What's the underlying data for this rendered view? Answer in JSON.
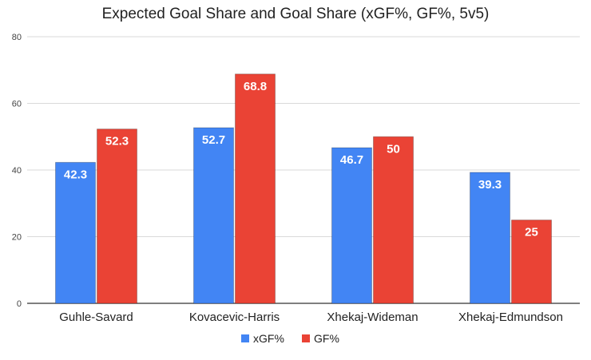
{
  "chart_data": {
    "type": "bar",
    "title": "Expected Goal Share and Goal Share (xGF%, GF%, 5v5)",
    "categories": [
      "Guhle-Savard",
      "Kovacevic-Harris",
      "Xhekaj-Wideman",
      "Xhekaj-Edmundson"
    ],
    "series": [
      {
        "name": "xGF%",
        "values": [
          42.3,
          52.7,
          46.7,
          39.3
        ],
        "color": "#4285f4"
      },
      {
        "name": "GF%",
        "values": [
          52.3,
          68.8,
          50,
          25
        ],
        "color": "#ea4335"
      }
    ],
    "ylim": [
      0,
      80
    ],
    "yticks": [
      0,
      20,
      40,
      60,
      80
    ],
    "grid": true,
    "legend": "bottom",
    "data_labels": true
  }
}
